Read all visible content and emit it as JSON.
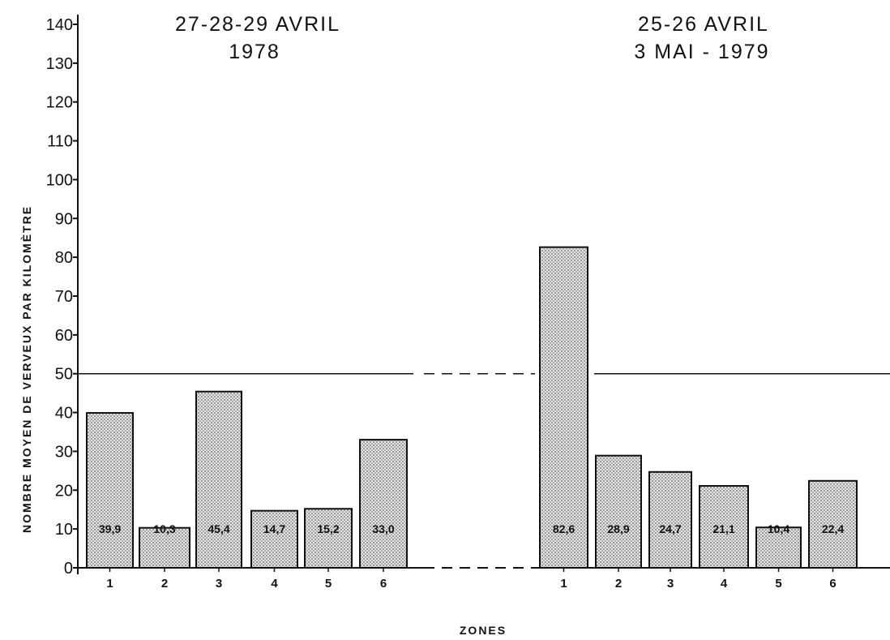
{
  "chart_data": {
    "type": "bar",
    "ylabel": "NOMBRE MOYEN DE VERVEUX PAR KILOMÈTRE",
    "xlabel": "ZONES",
    "ylim": [
      0,
      140
    ],
    "yticks": [
      0,
      10,
      20,
      30,
      40,
      50,
      60,
      70,
      80,
      90,
      100,
      110,
      120,
      130,
      140
    ],
    "reference_line": 50,
    "panels": [
      {
        "title_lines": [
          "27-28-29 AVRIL",
          "1978"
        ],
        "categories": [
          "1",
          "2",
          "3",
          "4",
          "5",
          "6"
        ],
        "values": [
          39.9,
          10.3,
          45.4,
          14.7,
          15.2,
          33.0
        ],
        "value_labels": [
          "39,9",
          "10,3",
          "45,4",
          "14,7",
          "15,2",
          "33,0"
        ]
      },
      {
        "title_lines": [
          "25-26 AVRIL",
          "3 MAI - 1979"
        ],
        "categories": [
          "1",
          "2",
          "3",
          "4",
          "5",
          "6"
        ],
        "values": [
          82.6,
          28.9,
          24.7,
          21.1,
          10.4,
          22.4
        ],
        "value_labels": [
          "82,6",
          "28,9",
          "24,7",
          "21,1",
          "10,4",
          "22,4"
        ]
      }
    ]
  }
}
